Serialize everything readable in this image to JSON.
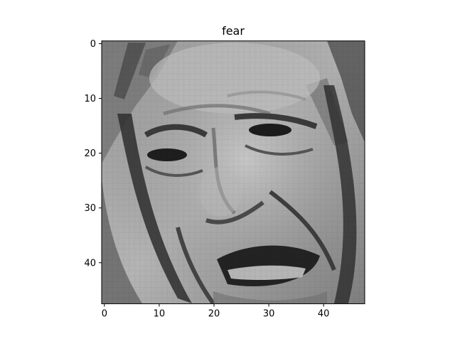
{
  "figure": {
    "title": "fear",
    "image_description_kind": "48x48 grayscale face image",
    "x_ticks": [
      "0",
      "10",
      "20",
      "30",
      "40"
    ],
    "y_ticks": [
      "0",
      "10",
      "20",
      "30",
      "40"
    ],
    "x_range": [
      -0.5,
      47.5
    ],
    "y_range": [
      -0.5,
      47.5
    ],
    "colors": {
      "axes_edge": "#000000",
      "background": "#ffffff"
    }
  }
}
